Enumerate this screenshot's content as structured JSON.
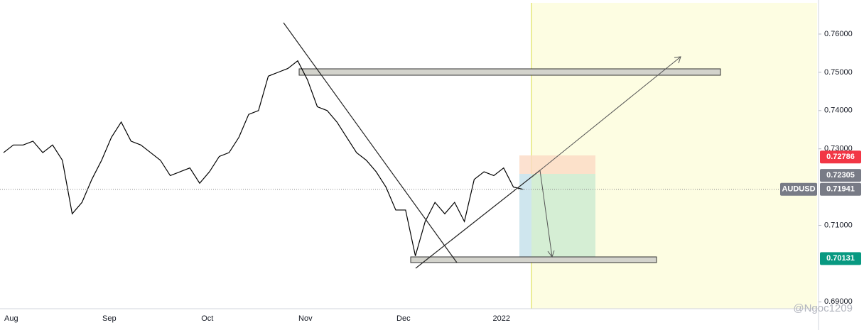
{
  "chart_data": {
    "type": "line",
    "categories": [
      null,
      "Aug",
      null,
      null,
      null,
      null,
      null,
      null,
      null,
      null,
      null,
      "Sep",
      null,
      null,
      null,
      null,
      null,
      null,
      null,
      null,
      null,
      "Oct",
      null,
      null,
      null,
      null,
      null,
      null,
      null,
      null,
      null,
      "Nov",
      null,
      null,
      null,
      null,
      null,
      null,
      null,
      null,
      null,
      "Dec",
      null,
      null,
      null,
      null,
      null,
      null,
      null,
      null,
      null,
      "2022",
      null,
      null
    ],
    "series": [
      {
        "name": "AUDUSD",
        "color": "#000000",
        "values": [
          0.729,
          0.731,
          0.731,
          0.732,
          0.729,
          0.731,
          0.727,
          0.713,
          0.716,
          0.722,
          0.727,
          0.733,
          0.737,
          0.732,
          0.731,
          0.729,
          0.727,
          0.723,
          0.724,
          0.725,
          0.721,
          0.724,
          0.728,
          0.729,
          0.733,
          0.739,
          0.74,
          0.749,
          0.75,
          0.751,
          0.753,
          0.748,
          0.741,
          0.74,
          0.737,
          0.733,
          0.729,
          0.727,
          0.724,
          0.72,
          0.714,
          0.714,
          0.702,
          0.711,
          0.716,
          0.713,
          0.716,
          0.711,
          0.722,
          0.724,
          0.723,
          0.725,
          0.72,
          0.7194
        ]
      }
    ],
    "ylim": [
      0.6882,
      0.7689
    ],
    "yticks": [
      {
        "value": 0.69,
        "label": "0.69000"
      },
      {
        "value": 0.71,
        "label": "0.71000"
      },
      {
        "value": 0.73,
        "label": "0.73000"
      },
      {
        "value": 0.74,
        "label": "0.74000"
      },
      {
        "value": 0.75,
        "label": "0.75000"
      },
      {
        "value": 0.76,
        "label": "0.76000"
      }
    ],
    "price_labels": [
      {
        "value": 0.72786,
        "color": "#f23645"
      },
      {
        "value": 0.72305,
        "color": "#787b86"
      },
      {
        "name": "AUDUSD",
        "value": 0.71941,
        "color": "#787b86"
      },
      {
        "value": 0.70131,
        "color": "#089981"
      }
    ],
    "watermark": "@Ngoc1209"
  }
}
